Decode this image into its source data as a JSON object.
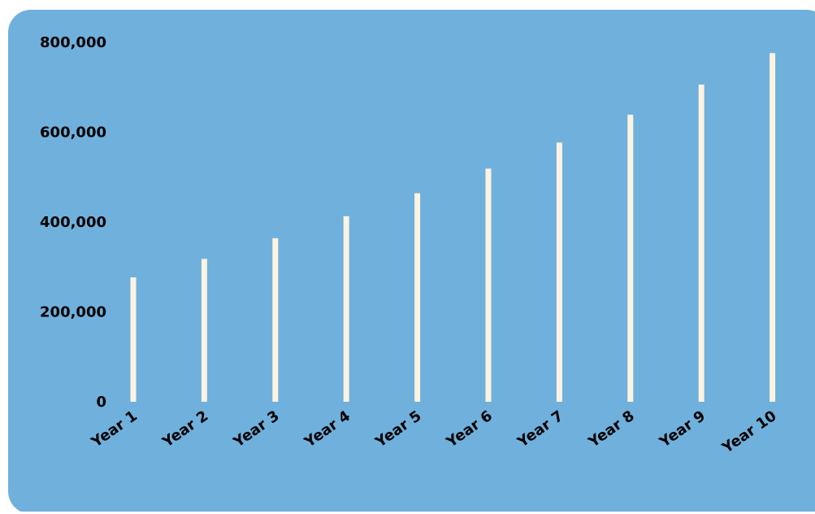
{
  "chart_data": {
    "type": "bar",
    "title": "",
    "xlabel": "",
    "ylabel": "",
    "categories": [
      "Year 1",
      "Year 2",
      "Year 3",
      "Year 4",
      "Year 5",
      "Year 6",
      "Year 7",
      "Year 8",
      "Year 9",
      "Year 10"
    ],
    "values": [
      277000,
      318000,
      364000,
      413000,
      464000,
      519000,
      577000,
      639000,
      706000,
      776000
    ],
    "ylim": [
      0,
      800000
    ],
    "yticks": [
      0,
      200000,
      400000,
      600000,
      800000
    ],
    "ytick_labels": [
      "0",
      "200,000",
      "400,000",
      "600,000",
      "800,000"
    ],
    "grid": false,
    "legend": "none"
  },
  "colors": {
    "background": "#70b0dc",
    "bar": "#fcf3e1",
    "text": "#000000"
  }
}
